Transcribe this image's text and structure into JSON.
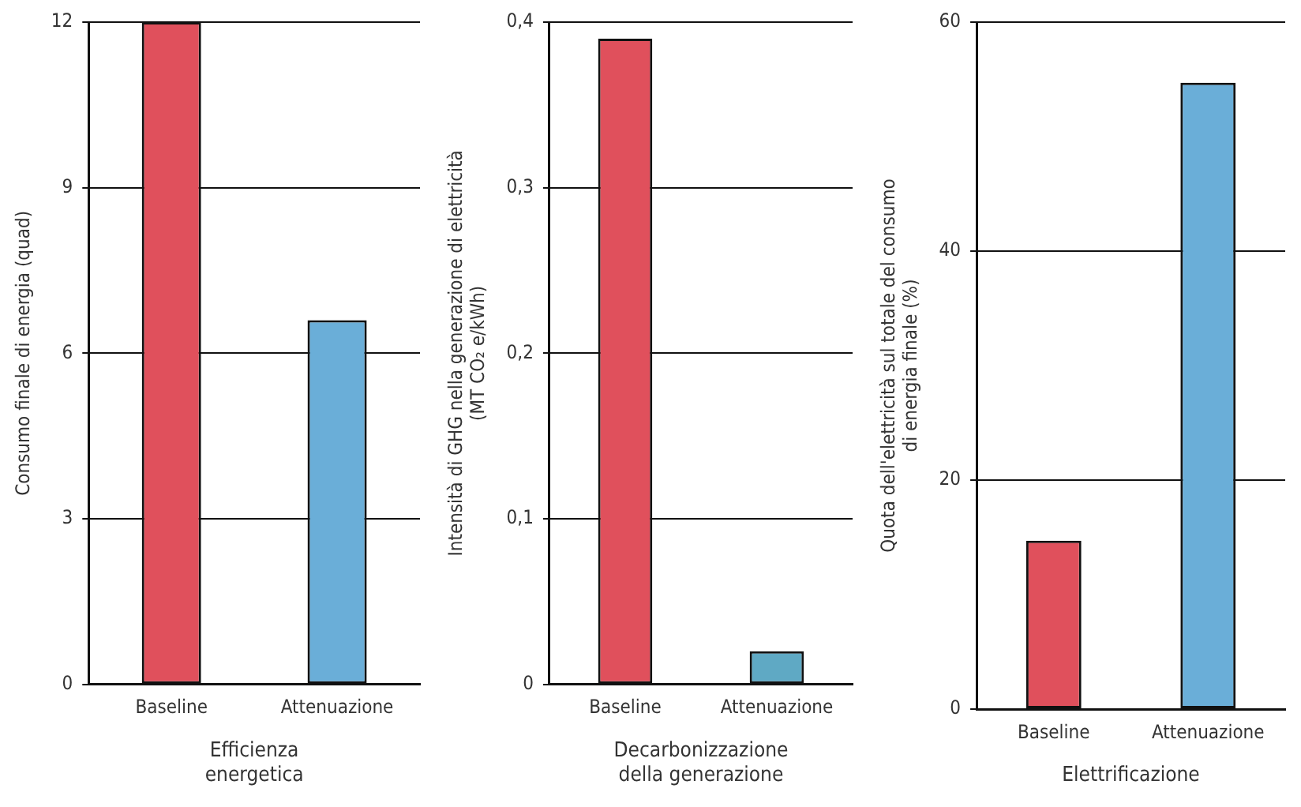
{
  "chart_data": [
    {
      "type": "bar",
      "categories": [
        "Baseline",
        "Attenuazione"
      ],
      "values": [
        12,
        6.6
      ],
      "colors": [
        "#e0505c",
        "#6aaed8"
      ],
      "ylabel": "Consumo finale di energia (quad)",
      "xlabel": "Efficienza\nenergetica",
      "ylim": [
        0,
        12
      ],
      "yticks": [
        0,
        3,
        6,
        9,
        12
      ],
      "grid": "y"
    },
    {
      "type": "bar",
      "categories": [
        "Baseline",
        "Attenuazione"
      ],
      "values": [
        0.39,
        0.02
      ],
      "colors": [
        "#e0505c",
        "#5fa9c4"
      ],
      "ylabel": "Intensità di GHG nella generazione di elettricità\n(MT CO₂ e/kWh)",
      "xlabel": "Decarbonizzazione\ndella generazione",
      "ylim": [
        0,
        0.4
      ],
      "yticks": [
        {
          "value": 0,
          "label": "0"
        },
        {
          "value": 0.1,
          "label": "0,1"
        },
        {
          "value": 0.2,
          "label": "0,2"
        },
        {
          "value": 0.3,
          "label": "0,3"
        },
        {
          "value": 0.4,
          "label": "0,4"
        }
      ],
      "grid": "y"
    },
    {
      "type": "bar",
      "categories": [
        "Baseline",
        "Attenuazione"
      ],
      "values": [
        14.7,
        54.7
      ],
      "colors": [
        "#e0505c",
        "#6aaed8"
      ],
      "ylabel": "Quota dell'elettricità sul totale del consumo\ndi energia finale (%)",
      "xlabel": "Elettrificazione",
      "ylim": [
        0,
        60
      ],
      "yticks": [
        0,
        20,
        40,
        60
      ],
      "grid": "y"
    }
  ]
}
